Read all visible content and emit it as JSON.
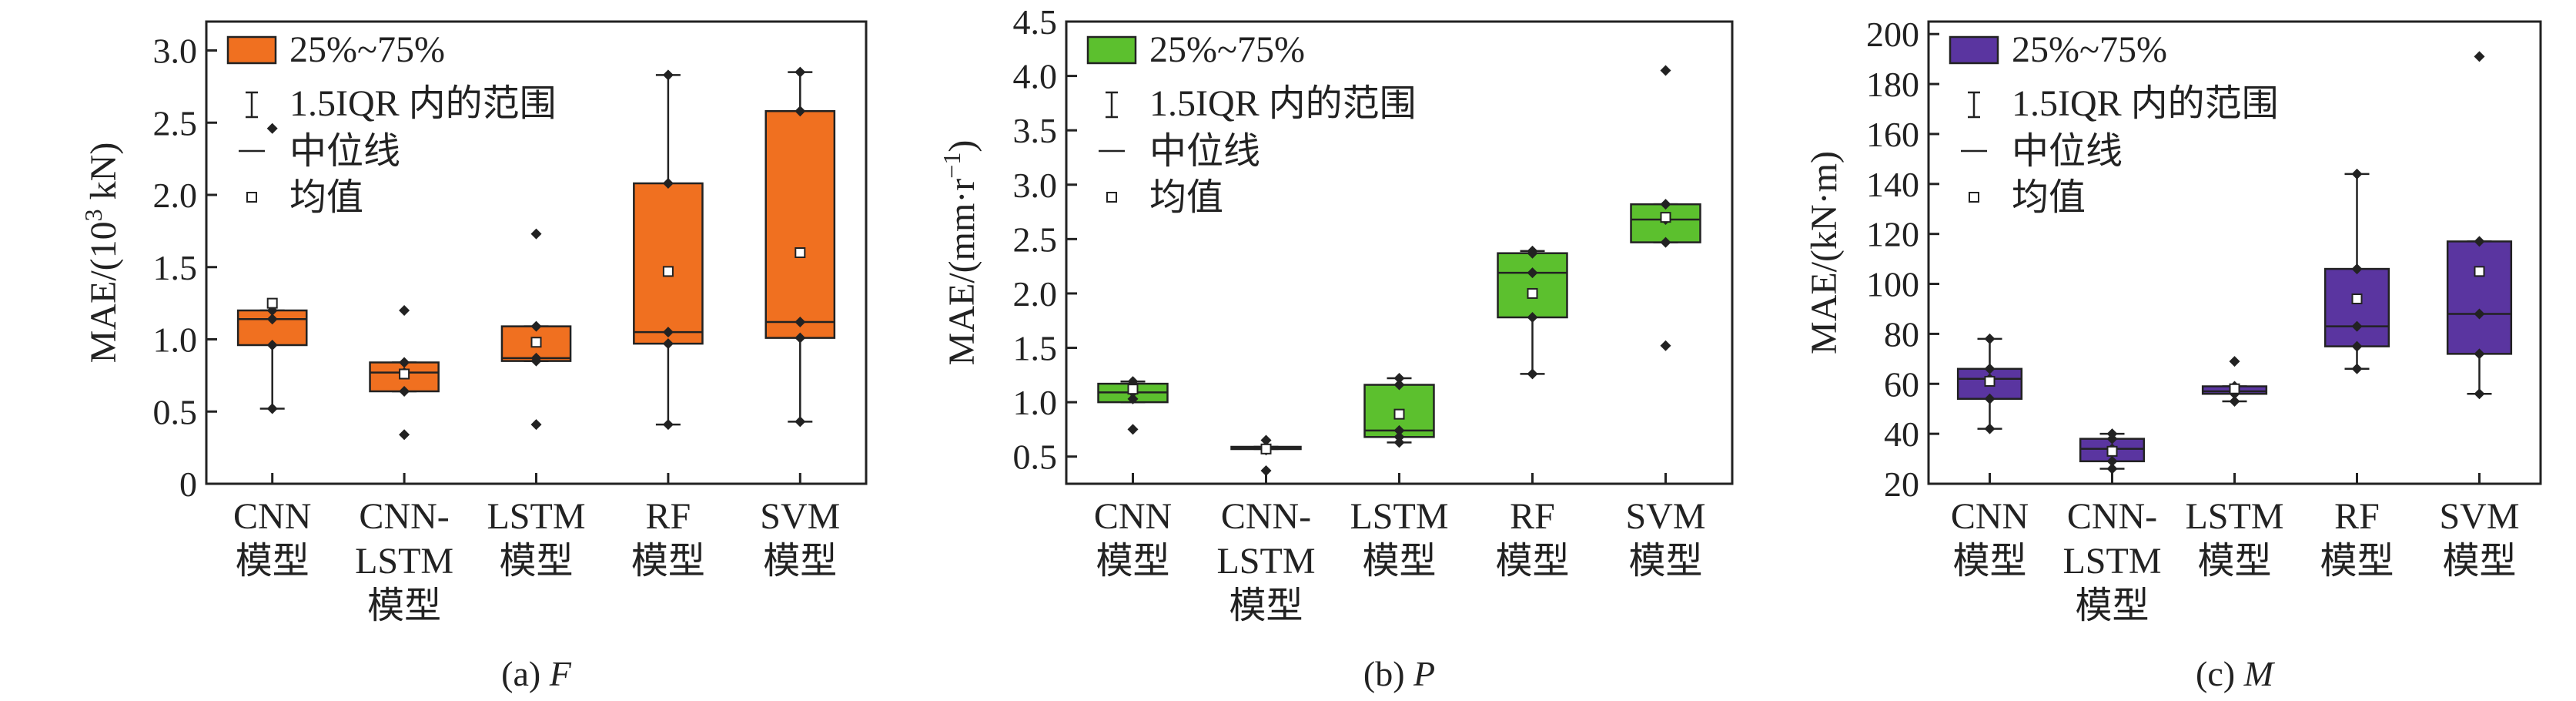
{
  "legend": {
    "box_label": "25%~75%",
    "whisker_label": "1.5IQR 内的范围",
    "median_label": "中位线",
    "mean_label": "均值"
  },
  "chart_data": [
    {
      "type": "box",
      "panel": "(a)",
      "caption_prefix": "(a)",
      "caption_var": "F",
      "ylabel_parts": [
        "MAE/(10",
        "3",
        " kN)"
      ],
      "ylim": [
        0,
        3.2
      ],
      "yticks": [
        "0",
        "0.5",
        "1.0",
        "1.5",
        "2.0",
        "2.5",
        "3.0"
      ],
      "ytick_values": [
        0,
        0.5,
        1.0,
        1.5,
        2.0,
        2.5,
        3.0
      ],
      "color": "#f07020",
      "categories": [
        [
          "CNN",
          "模型"
        ],
        [
          "CNN-",
          "LSTM",
          "模型"
        ],
        [
          "LSTM",
          "模型"
        ],
        [
          "RF",
          "模型"
        ],
        [
          "SVM",
          "模型"
        ]
      ],
      "boxes": [
        {
          "q1": 0.96,
          "q3": 1.2,
          "median": 1.14,
          "mean": 1.25,
          "whisker_low": 0.52,
          "whisker_high": 1.2,
          "points": [
            0.52,
            0.96,
            1.14,
            1.2,
            2.46
          ]
        },
        {
          "q1": 0.64,
          "q3": 0.84,
          "median": 0.77,
          "mean": 0.76,
          "whisker_low": 0.64,
          "whisker_high": 0.84,
          "points": [
            0.34,
            0.64,
            0.77,
            0.84,
            1.2
          ]
        },
        {
          "q1": 0.85,
          "q3": 1.09,
          "median": 0.87,
          "mean": 0.98,
          "whisker_low": 0.85,
          "whisker_high": 1.09,
          "points": [
            0.41,
            0.85,
            0.87,
            1.09,
            1.73
          ]
        },
        {
          "q1": 0.97,
          "q3": 2.08,
          "median": 1.05,
          "mean": 1.47,
          "whisker_low": 0.41,
          "whisker_high": 2.83,
          "points": [
            0.41,
            0.97,
            1.05,
            2.08,
            2.83
          ]
        },
        {
          "q1": 1.01,
          "q3": 2.58,
          "median": 1.12,
          "mean": 1.6,
          "whisker_low": 0.43,
          "whisker_high": 2.85,
          "points": [
            0.43,
            1.01,
            1.12,
            2.58,
            2.85
          ]
        }
      ]
    },
    {
      "type": "box",
      "panel": "(b)",
      "caption_prefix": "(b)",
      "caption_var": "P",
      "ylabel_parts": [
        "MAE/(mm·r",
        "−1",
        ")"
      ],
      "ylim": [
        0.25,
        4.5
      ],
      "yticks": [
        "0.5",
        "1.0",
        "1.5",
        "2.0",
        "2.5",
        "3.0",
        "3.5",
        "4.0",
        "4.5"
      ],
      "ytick_values": [
        0.5,
        1.0,
        1.5,
        2.0,
        2.5,
        3.0,
        3.5,
        4.0,
        4.5
      ],
      "color": "#5cc02e",
      "categories": [
        [
          "CNN",
          "模型"
        ],
        [
          "CNN-",
          "LSTM",
          "模型"
        ],
        [
          "LSTM",
          "模型"
        ],
        [
          "RF",
          "模型"
        ],
        [
          "SVM",
          "模型"
        ]
      ],
      "boxes": [
        {
          "q1": 1.0,
          "q3": 1.17,
          "median": 1.09,
          "mean": 1.12,
          "whisker_low": 1.0,
          "whisker_high": 1.19,
          "points": [
            0.75,
            1.03,
            1.09,
            1.15,
            1.19
          ]
        },
        {
          "q1": 0.57,
          "q3": 0.59,
          "median": 0.58,
          "mean": 0.57,
          "whisker_low": 0.57,
          "whisker_high": 0.59,
          "points": [
            0.37,
            0.56,
            0.58,
            0.59,
            0.65
          ]
        },
        {
          "q1": 0.68,
          "q3": 1.16,
          "median": 0.74,
          "mean": 0.89,
          "whisker_low": 0.63,
          "whisker_high": 1.22,
          "points": [
            0.63,
            0.68,
            0.74,
            1.16,
            1.22
          ]
        },
        {
          "q1": 1.78,
          "q3": 2.37,
          "median": 2.19,
          "mean": 2.0,
          "whisker_low": 1.26,
          "whisker_high": 2.39,
          "points": [
            1.26,
            1.78,
            2.19,
            2.37,
            2.39
          ]
        },
        {
          "q1": 2.47,
          "q3": 2.82,
          "median": 2.68,
          "mean": 2.7,
          "whisker_low": 2.47,
          "whisker_high": 2.82,
          "points": [
            1.52,
            2.47,
            2.68,
            2.82,
            4.05
          ]
        }
      ]
    },
    {
      "type": "box",
      "panel": "(c)",
      "caption_prefix": "(c)",
      "caption_var": "M",
      "ylabel_parts": [
        "MAE/(kN·m)"
      ],
      "ylim": [
        20,
        205
      ],
      "yticks": [
        "20",
        "40",
        "60",
        "80",
        "100",
        "120",
        "140",
        "160",
        "180",
        "200"
      ],
      "ytick_values": [
        20,
        40,
        60,
        80,
        100,
        120,
        140,
        160,
        180,
        200
      ],
      "color": "#5a35a0",
      "categories": [
        [
          "CNN",
          "模型"
        ],
        [
          "CNN-",
          "LSTM",
          "模型"
        ],
        [
          "LSTM",
          "模型"
        ],
        [
          "RF",
          "模型"
        ],
        [
          "SVM",
          "模型"
        ]
      ],
      "boxes": [
        {
          "q1": 54,
          "q3": 66,
          "median": 62,
          "mean": 61,
          "whisker_low": 42,
          "whisker_high": 78,
          "points": [
            42,
            54,
            62,
            66,
            78
          ]
        },
        {
          "q1": 29,
          "q3": 38,
          "median": 34,
          "mean": 33,
          "whisker_low": 26,
          "whisker_high": 40,
          "points": [
            26,
            29,
            34,
            38,
            40
          ]
        },
        {
          "q1": 56,
          "q3": 59,
          "median": 57,
          "mean": 58,
          "whisker_low": 53,
          "whisker_high": 59,
          "points": [
            53,
            56,
            57,
            59,
            69
          ]
        },
        {
          "q1": 75,
          "q3": 106,
          "median": 83,
          "mean": 94,
          "whisker_low": 66,
          "whisker_high": 144,
          "points": [
            66,
            75,
            83,
            106,
            144
          ]
        },
        {
          "q1": 72,
          "q3": 117,
          "median": 88,
          "mean": 105,
          "whisker_low": 56,
          "whisker_high": 117,
          "points": [
            56,
            72,
            88,
            117,
            191
          ]
        }
      ]
    }
  ]
}
